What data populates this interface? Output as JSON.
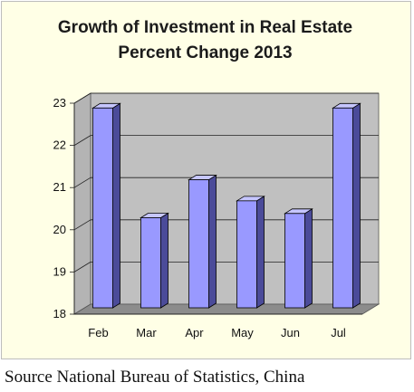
{
  "chart_data": {
    "type": "bar",
    "title": [
      "Growth of Investment in Real Estate",
      "Percent Change 2013"
    ],
    "xlabel": "",
    "ylabel": "",
    "categories": [
      "Feb",
      "Mar",
      "Apr",
      "May",
      "Jun",
      "Jul"
    ],
    "values": [
      22.8,
      20.2,
      21.1,
      20.6,
      20.3,
      22.8
    ],
    "ylim": [
      18,
      23
    ],
    "yticks": [
      18,
      19,
      20,
      21,
      22,
      23
    ],
    "grid": true,
    "legend": "none",
    "style": "3d-column",
    "colors": {
      "bar_front": "#9999ff",
      "bar_side": "#4b4b99",
      "bar_top": "#c6c6ff",
      "plot_back": "#c0c0c0",
      "floor": "#8c8c8c",
      "frame_background": "#ffffe6"
    }
  },
  "source": "Source National Bureau of Statistics, China"
}
